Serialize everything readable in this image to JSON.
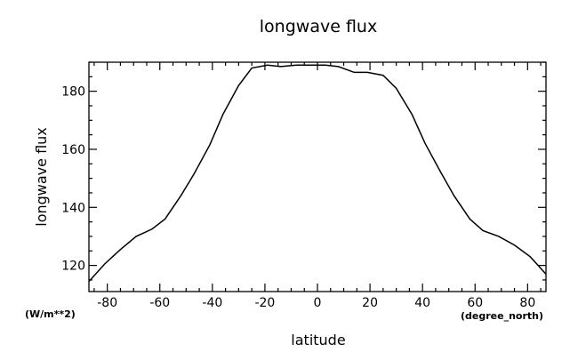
{
  "chart_data": {
    "type": "line",
    "title": "longwave flux",
    "xlabel": "latitude",
    "ylabel": "longwave flux",
    "x_units": "(degree_north)",
    "y_units": "(W/m**2)",
    "xlim": [
      -87,
      87
    ],
    "ylim": [
      111,
      190
    ],
    "x_ticks": [
      -80,
      -60,
      -40,
      -20,
      0,
      20,
      40,
      60,
      80
    ],
    "y_ticks": [
      120,
      140,
      160,
      180
    ],
    "grid": false,
    "series": [
      {
        "x": [
          -87,
          -81,
          -75,
          -69,
          -63,
          -58,
          -52,
          -47,
          -41,
          -36,
          -30,
          -25,
          -19,
          -14,
          -8,
          -3,
          3,
          8,
          14,
          19,
          25,
          30,
          36,
          41,
          47,
          52,
          58,
          63,
          69,
          75,
          81,
          87
        ],
        "values": [
          114.5,
          120.5,
          125.5,
          130,
          132.5,
          136,
          144,
          151.5,
          161.5,
          172,
          182,
          188,
          189,
          188.5,
          189,
          189,
          189,
          188.5,
          186.5,
          186.5,
          185.5,
          181,
          172,
          162,
          152,
          144,
          136,
          132,
          130,
          127,
          123,
          117
        ]
      }
    ]
  }
}
